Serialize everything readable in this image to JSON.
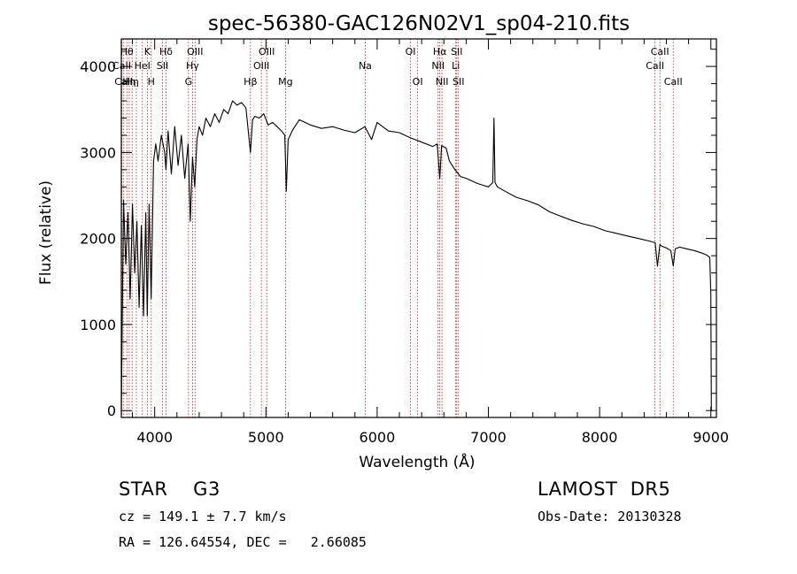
{
  "chart_data": {
    "type": "line",
    "title": "spec-56380-GAC126N02V1_sp04-210.fits",
    "xlabel": "Wavelength (Å)",
    "ylabel": "Flux (relative)",
    "xlim": [
      3700,
      9050
    ],
    "ylim": [
      -80,
      4320
    ],
    "xticks": [
      4000,
      5000,
      6000,
      7000,
      8000,
      9000
    ],
    "yticks": [
      0,
      1000,
      2000,
      3000,
      4000
    ],
    "grid": false,
    "series": [
      {
        "x": [
          3700,
          3720,
          3740,
          3760,
          3780,
          3800,
          3820,
          3840,
          3860,
          3880,
          3900,
          3920,
          3933,
          3950,
          3968,
          3990,
          4010,
          4030,
          4060,
          4090,
          4101,
          4120,
          4150,
          4180,
          4210,
          4240,
          4270,
          4300,
          4320,
          4340,
          4360,
          4380,
          4400,
          4430,
          4460,
          4500,
          4540,
          4580,
          4620,
          4660,
          4700,
          4740,
          4780,
          4820,
          4861,
          4880,
          4900,
          4940,
          4980,
          5020,
          5060,
          5100,
          5140,
          5170,
          5183,
          5200,
          5240,
          5300,
          5400,
          5500,
          5600,
          5700,
          5800,
          5890,
          5950,
          6000,
          6100,
          6200,
          6300,
          6400,
          6500,
          6540,
          6563,
          6580,
          6620,
          6650,
          6700,
          6750,
          6800,
          6850,
          6900,
          6950,
          7000,
          7040,
          7050,
          7060,
          7080,
          7150,
          7250,
          7350,
          7450,
          7550,
          7650,
          7750,
          7850,
          7950,
          8050,
          8150,
          8250,
          8350,
          8450,
          8500,
          8520,
          8542,
          8560,
          8600,
          8640,
          8662,
          8680,
          8720,
          8780,
          8850,
          8920,
          8960,
          8990,
          9000,
          9005,
          9015
        ],
        "y": [
          0,
          2450,
          1700,
          2300,
          1300,
          2400,
          1600,
          2200,
          1200,
          2150,
          1100,
          2300,
          1100,
          2400,
          1300,
          2900,
          3100,
          2900,
          3200,
          3000,
          2800,
          3250,
          2750,
          3300,
          2850,
          3200,
          2700,
          3100,
          2200,
          2950,
          2600,
          3150,
          3300,
          3200,
          3400,
          3300,
          3450,
          3350,
          3500,
          3450,
          3600,
          3550,
          3580,
          3520,
          3000,
          3380,
          3420,
          3400,
          3450,
          3320,
          3350,
          3300,
          3250,
          3200,
          2550,
          3150,
          3260,
          3380,
          3320,
          3280,
          3300,
          3260,
          3230,
          3300,
          3150,
          3350,
          3250,
          3230,
          3170,
          3120,
          3070,
          3100,
          2700,
          3080,
          3050,
          2900,
          2800,
          2720,
          2700,
          2670,
          2640,
          2620,
          2600,
          2650,
          3400,
          2650,
          2600,
          2550,
          2480,
          2440,
          2390,
          2310,
          2260,
          2210,
          2170,
          2140,
          2090,
          2060,
          2030,
          2000,
          1970,
          1950,
          1680,
          1930,
          1910,
          1890,
          1860,
          1680,
          1880,
          1900,
          1880,
          1860,
          1830,
          1810,
          1780,
          1350,
          0,
          0
        ]
      }
    ],
    "lines": [
      {
        "x": 3704,
        "label": "CaII",
        "row": 2
      },
      {
        "x": 3722,
        "label": "CaII",
        "row": 3
      },
      {
        "x": 3750,
        "label": "Hθ",
        "row": 1
      },
      {
        "x": 3771,
        "label": "Hη",
        "row": 3
      },
      {
        "x": 3797,
        "label": "Hη",
        "row": 3
      },
      {
        "x": 3835,
        "label": "",
        "row": 0
      },
      {
        "x": 3889,
        "label": "HeI",
        "row": 2
      },
      {
        "x": 3934,
        "label": "K",
        "row": 1
      },
      {
        "x": 3969,
        "label": "H",
        "row": 3
      },
      {
        "x": 4070,
        "label": "SII",
        "row": 2
      },
      {
        "x": 4102,
        "label": "Hδ",
        "row": 1
      },
      {
        "x": 4304,
        "label": "G",
        "row": 3
      },
      {
        "x": 4340,
        "label": "Hγ",
        "row": 2
      },
      {
        "x": 4363,
        "label": "OIII",
        "row": 1
      },
      {
        "x": 4861,
        "label": "Hβ",
        "row": 3
      },
      {
        "x": 4959,
        "label": "OIII",
        "row": 2
      },
      {
        "x": 5007,
        "label": "OIII",
        "row": 1
      },
      {
        "x": 5176,
        "label": "Mg",
        "row": 3
      },
      {
        "x": 5893,
        "label": "Na",
        "row": 2
      },
      {
        "x": 6300,
        "label": "OI",
        "row": 1
      },
      {
        "x": 6364,
        "label": "OI",
        "row": 3
      },
      {
        "x": 6548,
        "label": "NII",
        "row": 2
      },
      {
        "x": 6563,
        "label": "Hα",
        "row": 1
      },
      {
        "x": 6583,
        "label": "NII",
        "row": 3
      },
      {
        "x": 6707,
        "label": "Li",
        "row": 2
      },
      {
        "x": 6716,
        "label": "SII",
        "row": 1
      },
      {
        "x": 6731,
        "label": "SII",
        "row": 3
      },
      {
        "x": 8498,
        "label": "CaII",
        "row": 2
      },
      {
        "x": 8542,
        "label": "CaII",
        "row": 1
      },
      {
        "x": 8662,
        "label": "CaII",
        "row": 3
      }
    ]
  },
  "info": {
    "class_text": "STAR    G3",
    "survey": "LAMOST  DR5",
    "cz_text": "cz = 149.1 ± 7.7 km/s",
    "obs_date_text": "Obs-Date: 20130328",
    "coords_text": "RA = 126.64554, DEC =   2.66085"
  }
}
